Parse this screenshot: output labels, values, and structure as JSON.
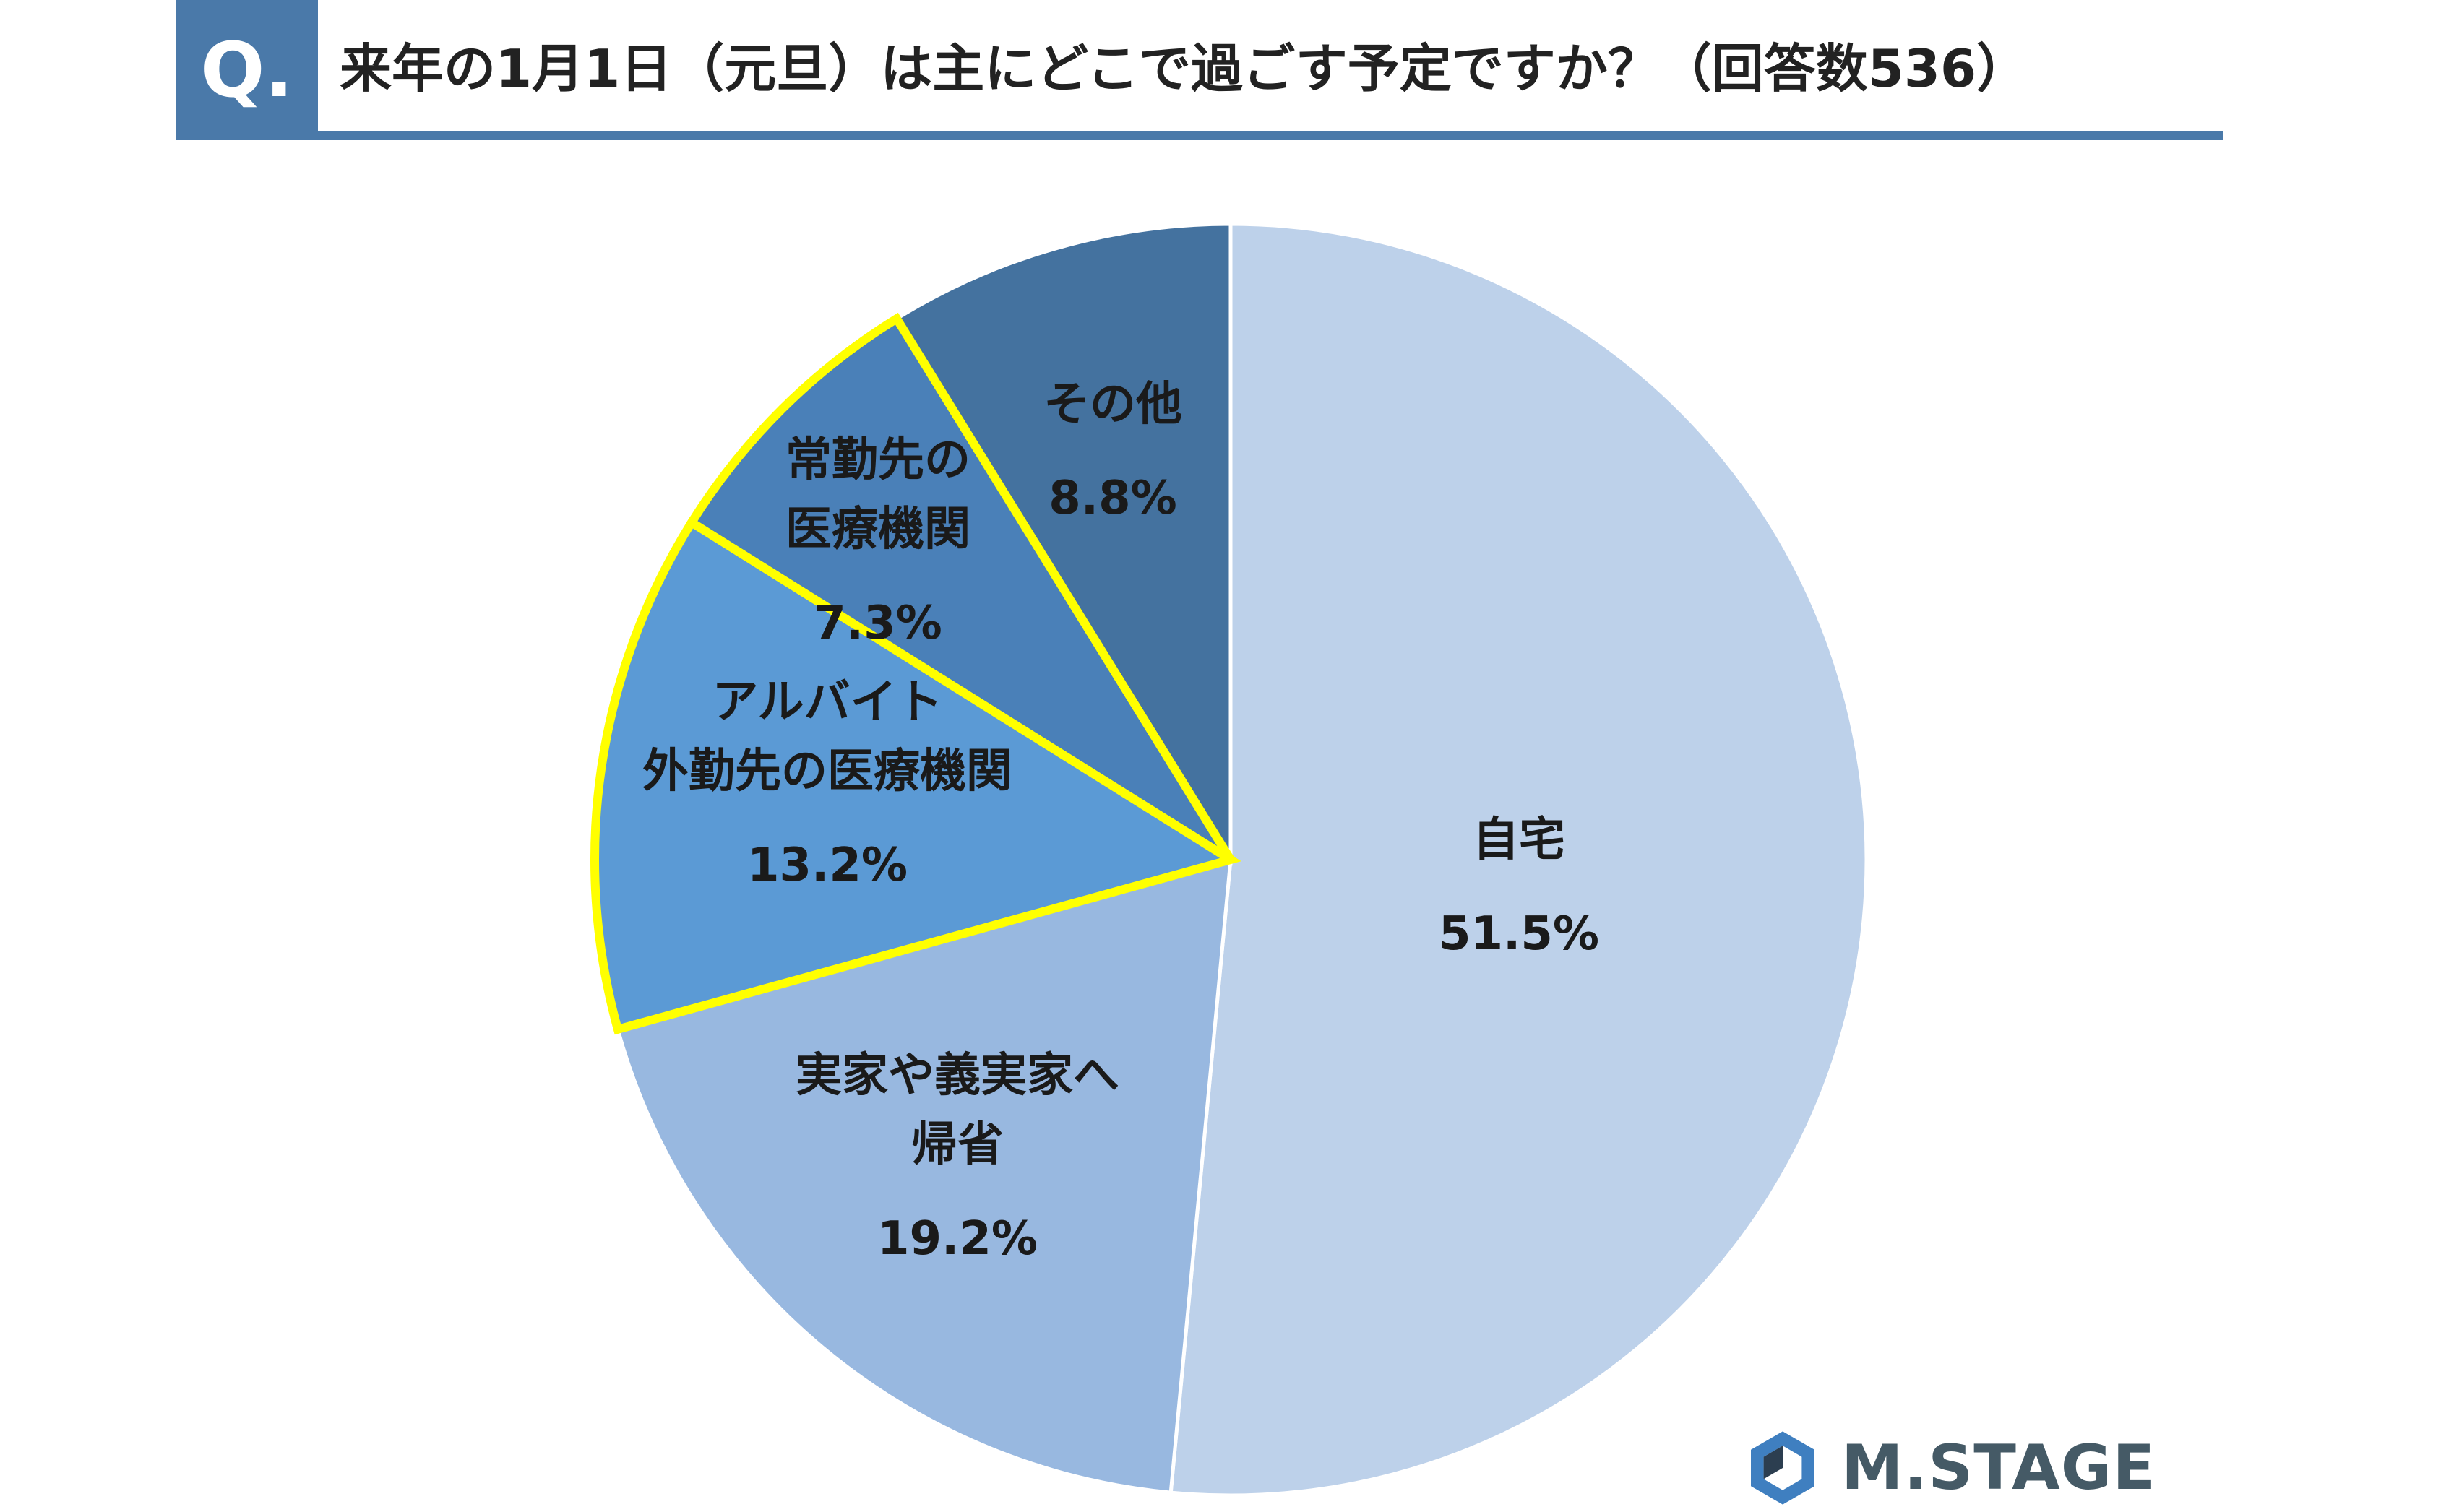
{
  "header": {
    "badge": "Q.",
    "question": "来年の1月1日（元旦）は主にどこで過ごす予定ですか？（回答数536）"
  },
  "chart_data": {
    "type": "pie",
    "title": "来年の1月1日（元旦）は主にどこで過ごす予定ですか？（回答数536）",
    "start_angle_deg": 0,
    "direction": "clockwise",
    "slices": [
      {
        "name": "自宅",
        "value": 51.5,
        "pct": "51.5%",
        "color": "#bdd1ea",
        "highlight": false
      },
      {
        "name": "実家や義実家へ\n帰省",
        "value": 19.2,
        "pct": "19.2%",
        "color": "#98b8e0",
        "highlight": false
      },
      {
        "name": "アルバイト\n外勤先の医療機関",
        "value": 13.2,
        "pct": "13.2%",
        "color": "#5b9ad5",
        "highlight": true
      },
      {
        "name": "常勤先の\n医療機関",
        "value": 7.3,
        "pct": "7.3%",
        "color": "#4a80b8",
        "highlight": true
      },
      {
        "name": "その他",
        "value": 8.8,
        "pct": "8.8%",
        "color": "#44729f",
        "highlight": false
      }
    ],
    "highlight_color": "#ffff00"
  },
  "branding": {
    "logo_text": "M.STAGE",
    "logo_color": "#455a66"
  }
}
